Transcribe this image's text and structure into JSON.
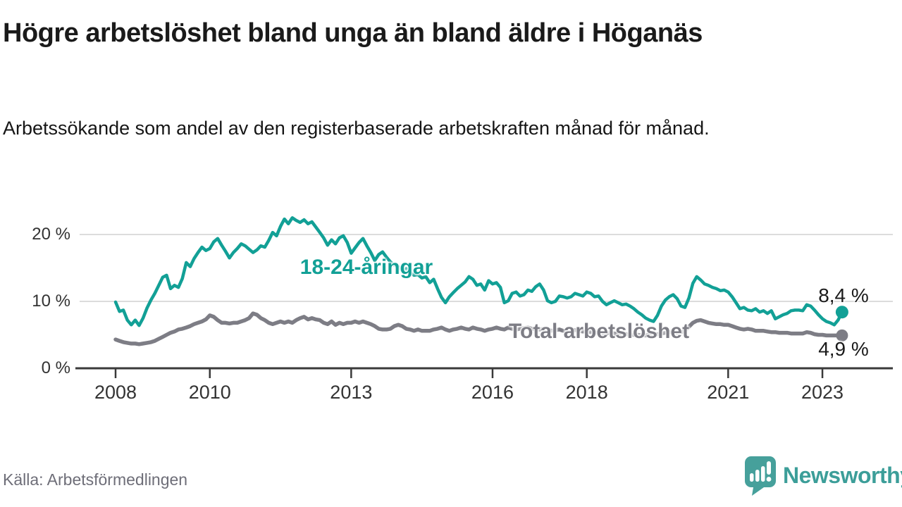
{
  "header": {
    "title": "Högre arbetslöshet bland unga än bland äldre i Höganäs",
    "subtitle": "Arbetssökande som andel av den registerbaserade arbetskraften månad för månad."
  },
  "footer": {
    "source": "Källa: Arbetsförmedlingen",
    "brand": "Newsworthy"
  },
  "colors": {
    "accent_teal": "#12A096",
    "series_gray": "#7D7D85",
    "logo_teal": "#46A09B",
    "axis": "#3A3A3A",
    "gridline": "#DCDCDC",
    "text_dark": "#1A1A1A",
    "text_muted": "#6E6E78"
  },
  "chart_data": {
    "type": "line",
    "unit": "%",
    "frequency": "monthly",
    "start": "2008-01",
    "end": "2023-06",
    "grid": "horizontal",
    "ylim": [
      0,
      23
    ],
    "x_tick_years": [
      2008,
      2010,
      2013,
      2016,
      2018,
      2021,
      2023
    ],
    "y_ticks": [
      {
        "value": 0,
        "label": "0 %"
      },
      {
        "value": 10,
        "label": "10 %"
      },
      {
        "value": 20,
        "label": "20 %"
      }
    ],
    "series": [
      {
        "name": "18-24-åringar",
        "color": "#12A096",
        "last_value_label": "8,4 %",
        "values": [
          9.9,
          8.5,
          8.7,
          7.2,
          6.5,
          7.2,
          6.4,
          7.5,
          9.0,
          10.2,
          11.2,
          12.4,
          13.6,
          13.9,
          11.9,
          12.4,
          12.1,
          13.4,
          15.8,
          15.2,
          16.4,
          17.3,
          18.1,
          17.6,
          17.9,
          18.9,
          19.4,
          18.4,
          17.5,
          16.5,
          17.3,
          17.9,
          18.6,
          18.3,
          17.8,
          17.3,
          17.7,
          18.3,
          18.1,
          19.1,
          20.3,
          19.8,
          21.2,
          22.3,
          21.6,
          22.5,
          22.1,
          21.8,
          22.2,
          21.6,
          21.9,
          21.1,
          20.3,
          19.5,
          18.4,
          19.2,
          18.6,
          19.5,
          19.8,
          18.8,
          17.2,
          18.0,
          18.8,
          19.4,
          18.3,
          17.3,
          16.1,
          17.0,
          17.4,
          16.6,
          15.9,
          15.4,
          15.2,
          14.6,
          14.9,
          14.3,
          13.9,
          14.0,
          13.5,
          13.7,
          12.8,
          13.3,
          11.9,
          10.6,
          9.8,
          10.7,
          11.3,
          11.9,
          12.4,
          12.9,
          13.7,
          13.3,
          12.4,
          12.6,
          11.7,
          13.1,
          12.6,
          12.8,
          12.1,
          9.8,
          10.1,
          11.2,
          11.4,
          10.8,
          11.0,
          11.7,
          11.5,
          12.2,
          12.6,
          11.7,
          10.1,
          9.8,
          10.0,
          10.8,
          10.7,
          10.5,
          10.7,
          11.2,
          11.0,
          10.8,
          11.4,
          11.2,
          10.7,
          10.8,
          10.0,
          9.5,
          9.8,
          10.1,
          9.8,
          9.5,
          9.6,
          9.3,
          8.9,
          8.4,
          8.0,
          7.5,
          7.2,
          7.0,
          7.9,
          9.3,
          10.2,
          10.7,
          11.0,
          10.4,
          9.3,
          9.1,
          10.5,
          12.7,
          13.7,
          13.2,
          12.6,
          12.4,
          12.1,
          11.9,
          11.6,
          11.7,
          11.4,
          10.7,
          9.8,
          8.9,
          9.1,
          8.7,
          8.6,
          8.9,
          8.4,
          8.6,
          8.2,
          8.6,
          7.4,
          7.7,
          8.0,
          8.2,
          8.6,
          8.7,
          8.7,
          8.6,
          9.5,
          9.3,
          8.7,
          8.0,
          7.4,
          7.0,
          6.8,
          6.5,
          7.2,
          8.4
        ]
      },
      {
        "name": "Total arbetslöshet",
        "color": "#7D7D85",
        "last_value_label": "4,9 %",
        "values": [
          4.3,
          4.1,
          3.9,
          3.8,
          3.7,
          3.7,
          3.6,
          3.7,
          3.8,
          3.9,
          4.1,
          4.4,
          4.7,
          5.0,
          5.3,
          5.5,
          5.8,
          5.9,
          6.1,
          6.3,
          6.6,
          6.8,
          7.0,
          7.3,
          7.9,
          7.7,
          7.2,
          6.8,
          6.8,
          6.7,
          6.8,
          6.8,
          7.0,
          7.2,
          7.5,
          8.2,
          8.0,
          7.5,
          7.2,
          6.8,
          6.6,
          6.8,
          7.0,
          6.8,
          7.0,
          6.8,
          7.2,
          7.5,
          7.7,
          7.3,
          7.5,
          7.3,
          7.2,
          6.8,
          6.6,
          7.0,
          6.5,
          6.8,
          6.6,
          6.8,
          6.8,
          7.0,
          6.8,
          7.0,
          6.8,
          6.6,
          6.3,
          5.9,
          5.8,
          5.8,
          5.9,
          6.3,
          6.5,
          6.3,
          5.9,
          5.8,
          5.6,
          5.8,
          5.6,
          5.6,
          5.6,
          5.8,
          5.9,
          6.1,
          5.8,
          5.6,
          5.8,
          5.9,
          6.1,
          5.9,
          5.8,
          6.1,
          5.9,
          5.8,
          5.6,
          5.8,
          5.9,
          6.1,
          5.9,
          5.8,
          6.1,
          5.9,
          5.8,
          5.9,
          6.0,
          6.1,
          5.9,
          5.8,
          5.8,
          5.9,
          5.8,
          5.6,
          5.7,
          5.8,
          5.6,
          5.5,
          5.6,
          5.7,
          5.6,
          5.5,
          5.5,
          5.4,
          5.3,
          5.3,
          5.2,
          5.2,
          5.3,
          5.2,
          5.1,
          5.2,
          5.1,
          5.0,
          5.0,
          5.0,
          4.9,
          4.9,
          5.0,
          5.0,
          5.1,
          5.2,
          5.3,
          5.4,
          5.4,
          5.3,
          5.4,
          5.6,
          6.2,
          6.8,
          7.1,
          7.2,
          7.0,
          6.8,
          6.7,
          6.6,
          6.6,
          6.5,
          6.5,
          6.3,
          6.1,
          5.9,
          5.8,
          5.9,
          5.8,
          5.6,
          5.6,
          5.6,
          5.5,
          5.4,
          5.4,
          5.3,
          5.3,
          5.3,
          5.2,
          5.2,
          5.2,
          5.2,
          5.4,
          5.3,
          5.1,
          5.0,
          5.0,
          4.9,
          4.9,
          4.9,
          4.9,
          4.9
        ]
      }
    ]
  }
}
